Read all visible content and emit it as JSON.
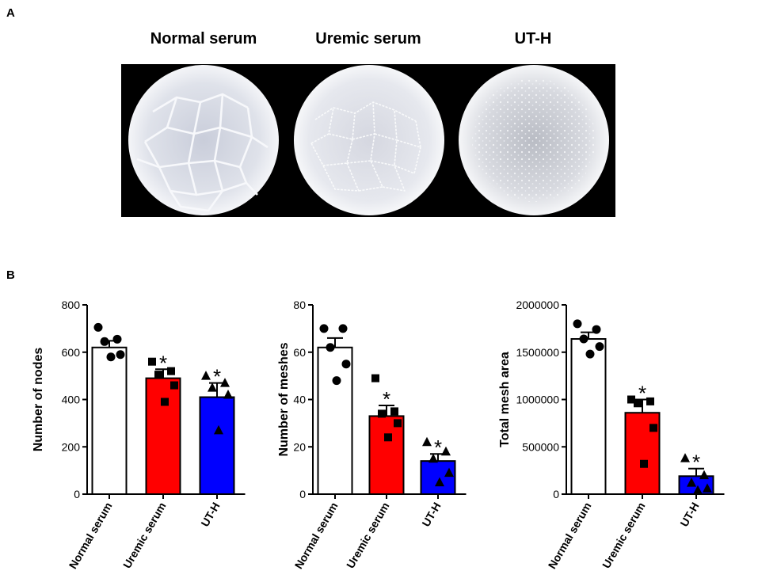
{
  "panels": {
    "a": "A",
    "b": "B"
  },
  "images": [
    {
      "label": "Normal serum"
    },
    {
      "label": "Uremic serum"
    },
    {
      "label": "UT-H"
    }
  ],
  "colors": {
    "normal": "#ffffff",
    "uremic": "#ff0000",
    "uth": "#0000ff",
    "axis": "#000000"
  },
  "chart_data": [
    {
      "type": "bar",
      "ylabel": "Number of nodes",
      "ylim": [
        0,
        800
      ],
      "yticks": [
        "0",
        "200",
        "400",
        "600",
        "800"
      ],
      "categories": [
        "Normal serum",
        "Uremic serum",
        "UT-H"
      ],
      "values": [
        620,
        490,
        410
      ],
      "errors": [
        28,
        38,
        60
      ],
      "markers": [
        "circle",
        "square",
        "triangle"
      ],
      "points": [
        [
          705,
          655,
          645,
          590,
          580
        ],
        [
          560,
          520,
          505,
          460,
          390
        ],
        [
          500,
          470,
          450,
          420,
          270
        ]
      ],
      "significance": [
        "",
        "*",
        "*"
      ]
    },
    {
      "type": "bar",
      "ylabel": "Number of meshes",
      "ylim": [
        0,
        80
      ],
      "yticks": [
        "0",
        "20",
        "40",
        "60",
        "80"
      ],
      "categories": [
        "Normal serum",
        "Uremic serum",
        "UT-H"
      ],
      "values": [
        62,
        33,
        14
      ],
      "errors": [
        4,
        4.5,
        3
      ],
      "markers": [
        "circle",
        "square",
        "triangle"
      ],
      "points": [
        [
          70,
          70,
          62,
          55,
          48
        ],
        [
          49,
          35,
          34,
          30,
          24
        ],
        [
          22,
          18,
          15,
          9,
          5
        ]
      ],
      "significance": [
        "",
        "*",
        "*"
      ]
    },
    {
      "type": "bar",
      "ylabel": "Total mesh area",
      "ylim": [
        0,
        2000000
      ],
      "yticks": [
        "0",
        "500000",
        "1000000",
        "1500000",
        "2000000"
      ],
      "categories": [
        "Normal serum",
        "Uremic serum",
        "UT-H"
      ],
      "values": [
        1640000,
        860000,
        190000
      ],
      "errors": [
        70000,
        140000,
        80000
      ],
      "markers": [
        "circle",
        "square",
        "triangle"
      ],
      "points": [
        [
          1800000,
          1740000,
          1640000,
          1560000,
          1480000
        ],
        [
          1000000,
          980000,
          960000,
          700000,
          320000
        ],
        [
          380000,
          200000,
          120000,
          60000,
          40000
        ]
      ],
      "significance": [
        "",
        "*",
        "*"
      ]
    }
  ]
}
